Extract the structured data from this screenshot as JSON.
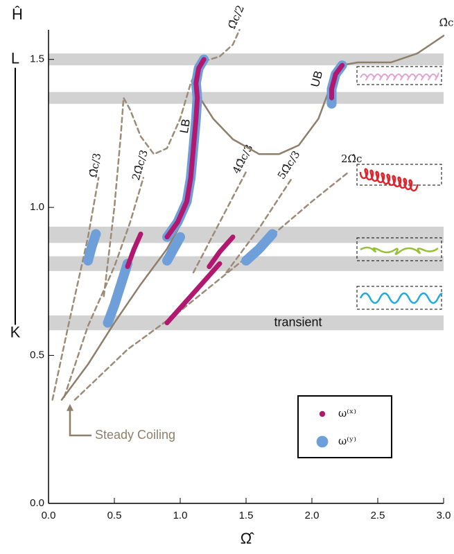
{
  "chart_data": {
    "type": "line",
    "x_label": "Ω̂",
    "y_label": "Ĥ",
    "xlim": [
      0,
      3
    ],
    "ylim": [
      0,
      1.6
    ],
    "xticks": [
      {
        "value": 0,
        "label": "0.0"
      },
      {
        "value": 0.5,
        "label": "0.5"
      },
      {
        "value": 1,
        "label": "1.0"
      },
      {
        "value": 1.5,
        "label": "1.5"
      },
      {
        "value": 2,
        "label": "2.0"
      },
      {
        "value": 2.5,
        "label": "2.5"
      },
      {
        "value": 3,
        "label": "3.0"
      }
    ],
    "yticks": [
      {
        "value": 0,
        "label": "0.0"
      },
      {
        "value": 0.5,
        "label": "0.5"
      },
      {
        "value": 1,
        "label": "1.0"
      },
      {
        "value": 1.5,
        "label": "1.5"
      }
    ],
    "bands": [
      [
        1.48,
        1.52
      ],
      [
        1.35,
        1.39
      ],
      [
        0.88,
        0.935
      ],
      [
        0.785,
        0.835
      ],
      [
        0.585,
        0.635
      ]
    ],
    "band_color": "#d2d2d2",
    "band_label": "transient",
    "bracket": {
      "top_label": "L",
      "bottom_label": "K",
      "top": 1.5,
      "bottom": 0.575
    },
    "annotations": {
      "lower_branch": "LB",
      "upper_branch": "UB",
      "steady": "Steady Coiling"
    },
    "series": [
      {
        "name": "Ω̂c/2",
        "style": "dashed",
        "color": "#9c8b77",
        "x": [
          0.42,
          0.5,
          0.55,
          0.57,
          0.62,
          0.7,
          0.8,
          0.9,
          1.0,
          1.08,
          1.15,
          1.3,
          1.4,
          1.45
        ],
        "values": [
          0.7,
          1.0,
          1.25,
          1.37,
          1.33,
          1.24,
          1.18,
          1.2,
          1.3,
          1.42,
          1.49,
          1.51,
          1.55,
          1.6
        ]
      },
      {
        "name": "Ω̂c/3",
        "style": "dashed",
        "color": "#9c8b77",
        "x": [
          0.03,
          0.15,
          0.3,
          0.38
        ],
        "values": [
          0.35,
          0.6,
          0.9,
          1.1
        ]
      },
      {
        "name": "2Ω̂c/3",
        "style": "dashed",
        "color": "#9c8b77",
        "x": [
          0.12,
          0.3,
          0.5,
          0.62,
          0.72
        ],
        "values": [
          0.36,
          0.6,
          0.8,
          0.95,
          1.1
        ]
      },
      {
        "name": "4Ω̂c/3",
        "style": "dashed",
        "color": "#9c8b77",
        "x": [
          1.1,
          1.3,
          1.5
        ],
        "values": [
          0.78,
          0.95,
          1.12
        ]
      },
      {
        "name": "5Ω̂c/3",
        "style": "dashed",
        "color": "#9c8b77",
        "x": [
          1.35,
          1.6,
          1.85
        ],
        "values": [
          0.78,
          0.93,
          1.1
        ]
      },
      {
        "name": "2Ω̂c",
        "style": "dashed",
        "color": "#9c8b77",
        "x": [
          0.2,
          0.6,
          1.0,
          1.5,
          2.0,
          2.28
        ],
        "values": [
          0.35,
          0.52,
          0.65,
          0.83,
          1.02,
          1.12
        ]
      },
      {
        "name": "Ω̂c",
        "style": "solid",
        "color": "#8f7e6a",
        "x": [
          0.1,
          0.3,
          0.5,
          0.7,
          0.9,
          1.0,
          1.06,
          1.1,
          1.13,
          1.15,
          1.25,
          1.4,
          1.6,
          1.75,
          1.9,
          2.05,
          2.15,
          2.22,
          2.35,
          2.6,
          2.8,
          3.0
        ],
        "values": [
          0.35,
          0.47,
          0.61,
          0.74,
          0.86,
          0.94,
          1.05,
          1.2,
          1.3,
          1.37,
          1.3,
          1.23,
          1.18,
          1.18,
          1.21,
          1.3,
          1.42,
          1.48,
          1.49,
          1.49,
          1.52,
          1.58
        ]
      },
      {
        "name": "ω⁽ʸ⁾",
        "style": "marker",
        "width": 14,
        "color": "#6f9fd8",
        "x": [
          0.3,
          0.33,
          0.36,
          null,
          0.45,
          0.5,
          0.55,
          0.6,
          null,
          0.9,
          0.95,
          1.0,
          null,
          0.9,
          0.98,
          1.05,
          1.08,
          1.1,
          1.12,
          1.13,
          1.12,
          1.14,
          1.18,
          null,
          1.5,
          1.6,
          1.7,
          null,
          2.15,
          2.15,
          2.18,
          2.23
        ],
        "values": [
          0.82,
          0.87,
          0.91,
          null,
          0.61,
          0.67,
          0.74,
          0.81,
          null,
          0.82,
          0.86,
          0.9,
          null,
          0.9,
          0.95,
          1.02,
          1.1,
          1.2,
          1.3,
          1.37,
          1.42,
          1.47,
          1.5,
          null,
          0.82,
          0.86,
          0.91,
          null,
          1.35,
          1.4,
          1.45,
          1.48
        ]
      },
      {
        "name": "ω⁽ˣ⁾",
        "style": "marker",
        "width": 7,
        "color": "#b0196f",
        "x": [
          0.6,
          0.65,
          0.7,
          null,
          0.9,
          1.1,
          1.3,
          null,
          1.22,
          1.3,
          1.4,
          null,
          0.9,
          0.98,
          1.05,
          1.08,
          1.1,
          1.12,
          1.13,
          1.12,
          1.14,
          1.18,
          null,
          2.15,
          2.15,
          2.18,
          2.23
        ],
        "values": [
          0.8,
          0.86,
          0.91,
          null,
          0.61,
          0.71,
          0.81,
          null,
          0.8,
          0.85,
          0.9,
          null,
          0.9,
          0.95,
          1.02,
          1.1,
          1.2,
          1.3,
          1.37,
          1.42,
          1.47,
          1.5,
          null,
          1.37,
          1.4,
          1.45,
          1.48
        ]
      }
    ]
  }
}
